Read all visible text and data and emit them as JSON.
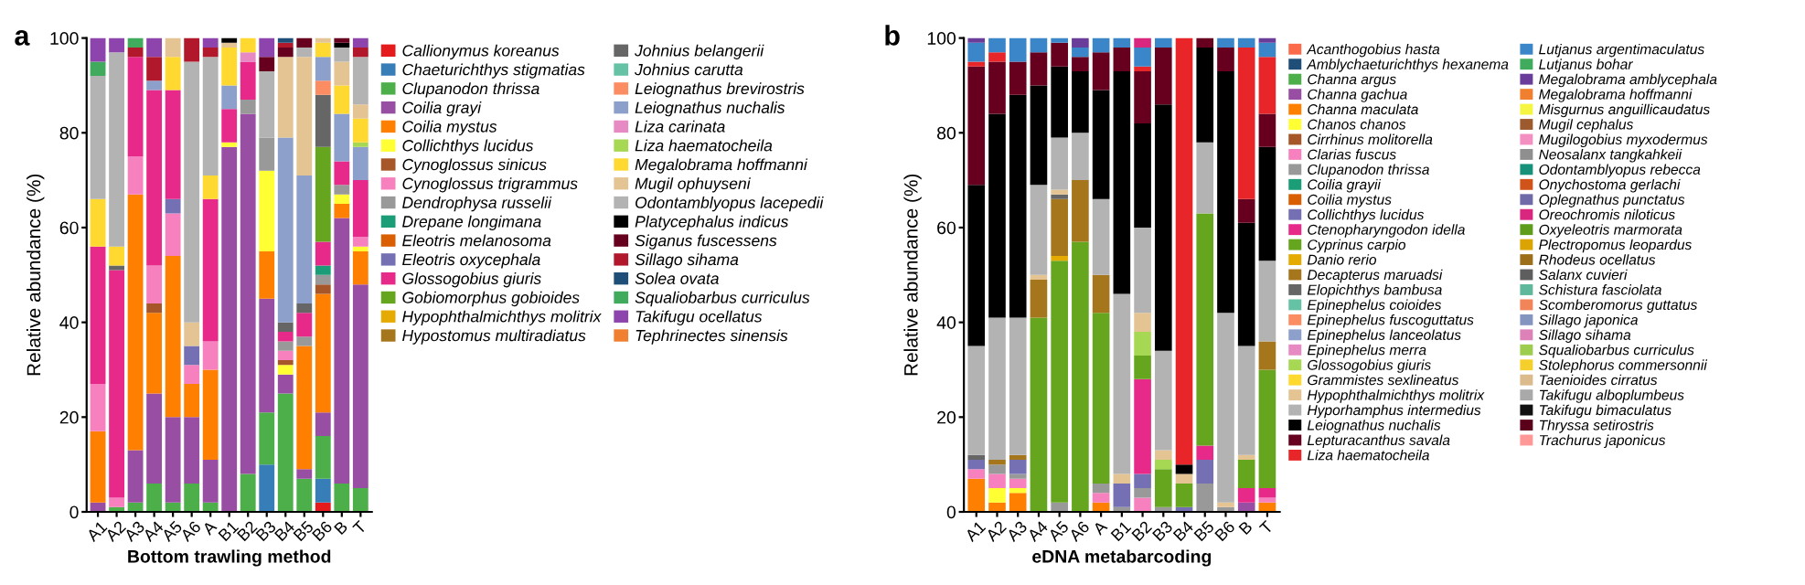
{
  "chart_data": [
    {
      "type": "bar",
      "stacked": true,
      "title": "a",
      "xlabel": "Bottom trawling method",
      "ylabel": "Relative abundance (%)",
      "legend": "right",
      "ylim": [
        0,
        100
      ],
      "yticks": [
        0,
        20,
        40,
        60,
        80,
        100
      ],
      "categories": [
        "A1",
        "A2",
        "A3",
        "A4",
        "A5",
        "A6",
        "A",
        "B1",
        "B2",
        "B3",
        "B4",
        "B5",
        "B6",
        "B",
        "T"
      ],
      "series": [
        {
          "name": "Callionymus koreanus",
          "color": "#e41a1c",
          "values": [
            0,
            0,
            0,
            0,
            0,
            0,
            0,
            0,
            0,
            0,
            0,
            0,
            2,
            0,
            0
          ]
        },
        {
          "name": "Chaeturichthys stigmatias",
          "color": "#377eb8",
          "values": [
            0,
            0,
            0,
            0,
            0,
            0,
            0,
            0,
            0,
            10,
            0,
            0,
            5,
            0,
            0
          ]
        },
        {
          "name": "Clupanodon thrissa",
          "color": "#4daf4a",
          "values": [
            0,
            1,
            2,
            6,
            2,
            6,
            2,
            0,
            8,
            11,
            25,
            7,
            9,
            6,
            5
          ]
        },
        {
          "name": "Coilia grayi",
          "color": "#984ea3",
          "values": [
            2,
            0,
            11,
            19,
            18,
            14,
            9,
            77,
            76,
            24,
            4,
            2,
            5,
            56,
            43
          ]
        },
        {
          "name": "Coilia mystus",
          "color": "#ff7f00",
          "values": [
            15,
            0,
            54,
            17,
            34,
            7,
            19,
            0,
            0,
            10,
            0,
            26,
            25,
            3,
            7
          ]
        },
        {
          "name": "Collichthys lucidus",
          "color": "#ffff33",
          "values": [
            0,
            0,
            0,
            0,
            0,
            0,
            0,
            1,
            0,
            17,
            2,
            0,
            0,
            2,
            1
          ]
        },
        {
          "name": "Cynoglossus sinicus",
          "color": "#a65628",
          "values": [
            0,
            0,
            0,
            2,
            0,
            0,
            0,
            0,
            0,
            0,
            1,
            0,
            2,
            0,
            0
          ]
        },
        {
          "name": "Cynoglossus trigrammus",
          "color": "#f781bf",
          "values": [
            10,
            2,
            8,
            8,
            9,
            4,
            6,
            0,
            0,
            0,
            2,
            0,
            0,
            0,
            2
          ]
        },
        {
          "name": "Dendrophysa russelii",
          "color": "#999999",
          "values": [
            0,
            0,
            0,
            0,
            0,
            0,
            0,
            0,
            3,
            7,
            2,
            2,
            2,
            2,
            0
          ]
        },
        {
          "name": "Drepane longimana",
          "color": "#1b9e77",
          "values": [
            0,
            0,
            0,
            0,
            0,
            0,
            0,
            0,
            0,
            0,
            0,
            0,
            2,
            0,
            0
          ]
        },
        {
          "name": "Eleotris melanosoma",
          "color": "#d95f02",
          "values": [
            0,
            0,
            0,
            0,
            0,
            0,
            0,
            0,
            0,
            0,
            0,
            0,
            0,
            0,
            0
          ]
        },
        {
          "name": "Eleotris oxycephala",
          "color": "#7570b3",
          "values": [
            0,
            0,
            0,
            0,
            3,
            4,
            0,
            0,
            0,
            0,
            0,
            0,
            0,
            0,
            0
          ]
        },
        {
          "name": "Glossogobius giuris",
          "color": "#e7298a",
          "values": [
            29,
            48,
            21,
            37,
            23,
            0,
            30,
            7,
            8,
            0,
            2,
            5,
            5,
            5,
            12
          ]
        },
        {
          "name": "Gobiomorphus gobioides",
          "color": "#66a61e",
          "values": [
            0,
            0,
            0,
            0,
            0,
            0,
            0,
            0,
            0,
            0,
            0,
            0,
            20,
            0,
            0
          ]
        },
        {
          "name": "Hypophthalmichthys molitrix",
          "color": "#e6ab02",
          "values": [
            0,
            0,
            0,
            0,
            0,
            0,
            0,
            0,
            0,
            0,
            0,
            0,
            0,
            0,
            0
          ]
        },
        {
          "name": "Hypostomus multiradiatus",
          "color": "#a6761d",
          "values": [
            0,
            0,
            0,
            0,
            0,
            0,
            0,
            0,
            0,
            0,
            0,
            0,
            0,
            0,
            0
          ]
        },
        {
          "name": "Johnius belangerii",
          "color": "#666666",
          "values": [
            0,
            1,
            0,
            0,
            0,
            0,
            0,
            0,
            0,
            0,
            2,
            2,
            11,
            0,
            0
          ]
        },
        {
          "name": "Johnius carutta",
          "color": "#66c2a5",
          "values": [
            0,
            0,
            0,
            0,
            0,
            0,
            0,
            0,
            0,
            0,
            0,
            0,
            0,
            0,
            0
          ]
        },
        {
          "name": "Leiognathus brevirostris",
          "color": "#fc8d62",
          "values": [
            0,
            0,
            0,
            0,
            0,
            0,
            0,
            0,
            0,
            0,
            0,
            0,
            3,
            0,
            0
          ]
        },
        {
          "name": "Leiognathus nuchalis",
          "color": "#8da0cb",
          "values": [
            0,
            0,
            0,
            2,
            0,
            0,
            0,
            5,
            0,
            0,
            39,
            27,
            5,
            10,
            7
          ]
        },
        {
          "name": "Liza carinata",
          "color": "#e78ac3",
          "values": [
            0,
            0,
            0,
            0,
            0,
            0,
            0,
            0,
            2,
            0,
            0,
            0,
            0,
            0,
            0
          ]
        },
        {
          "name": "Liza haematocheila",
          "color": "#a6d854",
          "values": [
            0,
            0,
            0,
            0,
            0,
            0,
            0,
            0,
            0,
            0,
            0,
            0,
            0,
            0,
            1
          ]
        },
        {
          "name": "Megalobrama hoffmanni",
          "color": "#ffd92f",
          "values": [
            10,
            4,
            0,
            0,
            7,
            0,
            5,
            8,
            3,
            0,
            0,
            0,
            3,
            6,
            5
          ]
        },
        {
          "name": "Mugil ophuyseni",
          "color": "#e5c494",
          "values": [
            0,
            0,
            0,
            0,
            4,
            5,
            0,
            1,
            0,
            0,
            17,
            25,
            1,
            5,
            3
          ]
        },
        {
          "name": "Odontamblyopus lacepedii",
          "color": "#b3b3b3",
          "values": [
            26,
            41,
            0,
            0,
            0,
            55,
            25,
            0,
            0,
            14,
            0,
            2,
            0,
            3,
            10
          ]
        },
        {
          "name": "Platycephalus indicus",
          "color": "#000000",
          "values": [
            0,
            0,
            0,
            0,
            0,
            0,
            0,
            1,
            0,
            0,
            0,
            0,
            0,
            1,
            0
          ]
        },
        {
          "name": "Siganus fuscessens",
          "color": "#67001f",
          "values": [
            0,
            0,
            0,
            0,
            0,
            0,
            0,
            0,
            0,
            3,
            2,
            2,
            0,
            1,
            0
          ]
        },
        {
          "name": "Sillago sihama",
          "color": "#b2182b",
          "values": [
            0,
            0,
            2,
            5,
            0,
            5,
            2,
            0,
            0,
            0,
            1,
            0,
            0,
            0,
            2
          ]
        },
        {
          "name": "Solea ovata",
          "color": "#1f4e79",
          "values": [
            0,
            0,
            0,
            0,
            0,
            0,
            0,
            0,
            0,
            0,
            1,
            0,
            0,
            0,
            0
          ]
        },
        {
          "name": "Squaliobarbus curriculus",
          "color": "#41ab5d",
          "values": [
            3,
            0,
            2,
            0,
            0,
            0,
            0,
            0,
            0,
            0,
            0,
            0,
            0,
            0,
            0
          ]
        },
        {
          "name": "Takifugu ocellatus",
          "color": "#8e44ad",
          "values": [
            5,
            3,
            0,
            4,
            0,
            0,
            2,
            0,
            0,
            4,
            0,
            0,
            0,
            0,
            2
          ]
        },
        {
          "name": "Tephrinectes sinensis",
          "color": "#f08030",
          "values": [
            0,
            0,
            0,
            0,
            0,
            0,
            0,
            0,
            0,
            0,
            0,
            0,
            0,
            0,
            0
          ]
        }
      ]
    },
    {
      "type": "bar",
      "stacked": true,
      "title": "b",
      "xlabel": "eDNA metabarcoding",
      "ylabel": "Relative abundance (%)",
      "legend": "right",
      "ylim": [
        0,
        100
      ],
      "yticks": [
        0,
        20,
        40,
        60,
        80,
        100
      ],
      "categories": [
        "A1",
        "A2",
        "A3",
        "A4",
        "A5",
        "A6",
        "A",
        "B1",
        "B2",
        "B3",
        "B4",
        "B5",
        "B6",
        "B",
        "T"
      ],
      "series": [
        {
          "name": "Acanthogobius hasta",
          "color": "#fb6a4a",
          "values": [
            0,
            0,
            0,
            0,
            0,
            0,
            0,
            0,
            0,
            0,
            0,
            0,
            0,
            0,
            0
          ]
        },
        {
          "name": "Amblychaeturichthys hexanema",
          "color": "#1f4e79",
          "values": [
            0,
            0,
            0,
            0,
            0,
            0,
            0,
            0,
            0,
            0,
            0,
            0,
            0,
            0,
            0
          ]
        },
        {
          "name": "Channa argus",
          "color": "#4daf4a",
          "values": [
            0,
            0,
            0,
            0,
            0,
            0,
            0,
            0,
            0,
            0,
            0,
            0,
            0,
            0,
            0
          ]
        },
        {
          "name": "Channa gachua",
          "color": "#984ea3",
          "values": [
            0,
            0,
            0,
            0,
            0,
            0,
            0,
            0,
            0,
            0,
            0,
            0,
            0,
            2,
            0
          ]
        },
        {
          "name": "Channa maculata",
          "color": "#ff7f00",
          "values": [
            7,
            2,
            4,
            0,
            0,
            0,
            2,
            0,
            0,
            0,
            0,
            0,
            0,
            0,
            2
          ]
        },
        {
          "name": "Chanos chanos",
          "color": "#ffff33",
          "values": [
            0,
            3,
            1,
            0,
            0,
            0,
            0,
            0,
            0,
            0,
            0,
            0,
            0,
            0,
            0
          ]
        },
        {
          "name": "Cirrhinus molitorella",
          "color": "#a65628",
          "values": [
            0,
            0,
            0,
            0,
            0,
            0,
            0,
            0,
            0,
            0,
            0,
            0,
            0,
            0,
            0
          ]
        },
        {
          "name": "Clarias fuscus",
          "color": "#f781bf",
          "values": [
            2,
            3,
            2,
            0,
            0,
            0,
            2,
            0,
            3,
            0,
            0,
            0,
            0,
            0,
            1
          ]
        },
        {
          "name": "Clupanodon thrissa",
          "color": "#999999",
          "values": [
            0,
            2,
            1,
            0,
            2,
            0,
            2,
            1,
            2,
            1,
            0,
            6,
            1,
            0,
            0
          ]
        },
        {
          "name": "Coilia grayii",
          "color": "#1b9e77",
          "values": [
            0,
            0,
            0,
            0,
            0,
            0,
            0,
            0,
            0,
            0,
            0,
            0,
            0,
            0,
            0
          ]
        },
        {
          "name": "Coilia mystus",
          "color": "#d95f02",
          "values": [
            0,
            0,
            0,
            0,
            0,
            0,
            0,
            0,
            0,
            0,
            0,
            0,
            0,
            0,
            0
          ]
        },
        {
          "name": "Collichthys lucidus",
          "color": "#7570b3",
          "values": [
            2,
            0,
            3,
            0,
            0,
            0,
            0,
            5,
            3,
            0,
            1,
            5,
            0,
            0,
            0
          ]
        },
        {
          "name": "Ctenopharyngodon idella",
          "color": "#e7298a",
          "values": [
            0,
            0,
            0,
            0,
            0,
            0,
            0,
            0,
            20,
            0,
            0,
            3,
            0,
            3,
            2
          ]
        },
        {
          "name": "Cyprinus carpio",
          "color": "#66a61e",
          "values": [
            0,
            0,
            0,
            41,
            51,
            57,
            36,
            0,
            5,
            8,
            5,
            49,
            0,
            6,
            25
          ]
        },
        {
          "name": "Danio rerio",
          "color": "#e6ab02",
          "values": [
            0,
            0,
            0,
            0,
            1,
            0,
            0,
            0,
            0,
            0,
            0,
            0,
            0,
            0,
            0
          ]
        },
        {
          "name": "Decapterus maruadsi",
          "color": "#a6761d",
          "values": [
            0,
            1,
            1,
            8,
            12,
            13,
            8,
            0,
            0,
            0,
            0,
            0,
            0,
            0,
            6
          ]
        },
        {
          "name": "Elopichthys bambusa",
          "color": "#666666",
          "values": [
            1,
            0,
            0,
            0,
            1,
            0,
            0,
            0,
            0,
            0,
            0,
            0,
            0,
            0,
            0
          ]
        },
        {
          "name": "Epinephelus coioides",
          "color": "#66c2a5",
          "values": [
            0,
            0,
            0,
            0,
            0,
            0,
            0,
            0,
            0,
            0,
            0,
            0,
            0,
            0,
            0
          ]
        },
        {
          "name": "Epinephelus fuscoguttatus",
          "color": "#fc8d62",
          "values": [
            0,
            0,
            0,
            0,
            0,
            0,
            0,
            0,
            0,
            0,
            0,
            0,
            0,
            0,
            0
          ]
        },
        {
          "name": "Epinephelus lanceolatus",
          "color": "#8da0cb",
          "values": [
            0,
            0,
            0,
            0,
            0,
            0,
            0,
            0,
            0,
            0,
            0,
            0,
            0,
            0,
            0
          ]
        },
        {
          "name": "Epinephelus merra",
          "color": "#e78ac3",
          "values": [
            0,
            0,
            0,
            0,
            0,
            0,
            0,
            0,
            0,
            0,
            0,
            0,
            0,
            0,
            0
          ]
        },
        {
          "name": "Glossogobius giuris",
          "color": "#a6d854",
          "values": [
            0,
            0,
            0,
            0,
            0,
            0,
            0,
            0,
            5,
            2,
            0,
            0,
            0,
            0,
            0
          ]
        },
        {
          "name": "Grammistes sexlineatus",
          "color": "#ffd92f",
          "values": [
            0,
            0,
            0,
            0,
            0,
            0,
            0,
            0,
            0,
            0,
            0,
            0,
            0,
            0,
            0
          ]
        },
        {
          "name": "Hypophthalmichthys molitrix",
          "color": "#e5c494",
          "values": [
            0,
            0,
            0,
            1,
            1,
            0,
            0,
            2,
            4,
            2,
            2,
            0,
            1,
            1,
            0
          ]
        },
        {
          "name": "Hyporhamphus intermedius",
          "color": "#b3b3b3",
          "values": [
            23,
            30,
            29,
            19,
            11,
            10,
            16,
            38,
            18,
            21,
            0,
            15,
            40,
            23,
            17
          ]
        },
        {
          "name": "Leiognathus nuchalis",
          "color": "#000000",
          "values": [
            34,
            43,
            47,
            21,
            15,
            13,
            23,
            47,
            22,
            52,
            2,
            20,
            51,
            26,
            24
          ]
        },
        {
          "name": "Lepturacanthus savala",
          "color": "#67001f",
          "values": [
            25,
            11,
            7,
            7,
            5,
            3,
            8,
            5,
            11,
            12,
            0,
            2,
            5,
            5,
            7
          ]
        },
        {
          "name": "Liza haematocheila",
          "color": "#e8262a",
          "values": [
            1,
            2,
            0,
            0,
            0,
            0,
            0,
            0,
            1,
            0,
            90,
            0,
            0,
            32,
            12
          ]
        },
        {
          "name": "Lutjanus argentimaculatus",
          "color": "#3a86c8",
          "values": [
            4,
            3,
            5,
            3,
            1,
            2,
            3,
            2,
            4,
            2,
            0,
            0,
            2,
            2,
            3
          ]
        },
        {
          "name": "Lutjanus bohar",
          "color": "#41ab5d",
          "values": [
            0,
            0,
            0,
            0,
            0,
            0,
            0,
            0,
            0,
            0,
            0,
            0,
            0,
            0,
            0
          ]
        },
        {
          "name": "Megalobrama amblycephala",
          "color": "#6a3d9a",
          "values": [
            1,
            0,
            0,
            0,
            0,
            2,
            0,
            0,
            0,
            0,
            0,
            0,
            0,
            0,
            1
          ]
        },
        {
          "name": "Megalobrama hoffmanni",
          "color": "#f08030",
          "values": [
            0,
            0,
            0,
            0,
            0,
            0,
            0,
            0,
            0,
            0,
            0,
            0,
            0,
            0,
            0
          ]
        },
        {
          "name": "Misgurnus anguillicaudatus",
          "color": "#f5f542",
          "values": [
            0,
            0,
            0,
            0,
            0,
            0,
            0,
            0,
            0,
            0,
            0,
            0,
            0,
            0,
            0
          ]
        },
        {
          "name": "Mugil cephalus",
          "color": "#9c5a2e",
          "values": [
            0,
            0,
            0,
            0,
            0,
            0,
            0,
            0,
            0,
            0,
            0,
            0,
            0,
            0,
            0
          ]
        },
        {
          "name": "Mugilogobius myxodermus",
          "color": "#f48fc2",
          "values": [
            0,
            0,
            0,
            0,
            0,
            0,
            0,
            0,
            0,
            0,
            0,
            0,
            0,
            0,
            0
          ]
        },
        {
          "name": "Neosalanx tangkahkeii",
          "color": "#8f8f8f",
          "values": [
            0,
            0,
            0,
            0,
            0,
            0,
            0,
            0,
            0,
            0,
            0,
            0,
            0,
            0,
            0
          ]
        },
        {
          "name": "Odontamblyopus rebecca",
          "color": "#17917a",
          "values": [
            0,
            0,
            0,
            0,
            0,
            0,
            0,
            0,
            0,
            0,
            0,
            0,
            0,
            0,
            0
          ]
        },
        {
          "name": "Onychostoma gerlachi",
          "color": "#d0541a",
          "values": [
            0,
            0,
            0,
            0,
            0,
            0,
            0,
            0,
            0,
            0,
            0,
            0,
            0,
            0,
            0
          ]
        },
        {
          "name": "Oplegnathus punctatus",
          "color": "#6f6aa8",
          "values": [
            0,
            0,
            0,
            0,
            0,
            0,
            0,
            0,
            0,
            0,
            0,
            0,
            0,
            0,
            0
          ]
        },
        {
          "name": "Oreochromis niloticus",
          "color": "#d9267f",
          "values": [
            0,
            0,
            0,
            0,
            0,
            0,
            0,
            0,
            2,
            0,
            0,
            0,
            0,
            0,
            0
          ]
        },
        {
          "name": "Oxyeleotris marmorata",
          "color": "#5e9c1c",
          "values": [
            0,
            0,
            0,
            0,
            0,
            0,
            0,
            0,
            0,
            0,
            0,
            0,
            0,
            0,
            0
          ]
        },
        {
          "name": "Plectropomus leopardus",
          "color": "#dba402",
          "values": [
            0,
            0,
            0,
            0,
            0,
            0,
            0,
            0,
            0,
            0,
            0,
            0,
            0,
            0,
            0
          ]
        },
        {
          "name": "Rhodeus ocellatus",
          "color": "#9c6f1b",
          "values": [
            0,
            0,
            0,
            0,
            0,
            0,
            0,
            0,
            0,
            0,
            0,
            0,
            0,
            0,
            0
          ]
        },
        {
          "name": "Salanx cuvieri",
          "color": "#5e5e5e",
          "values": [
            0,
            0,
            0,
            0,
            0,
            0,
            0,
            0,
            0,
            0,
            0,
            0,
            0,
            0,
            0
          ]
        },
        {
          "name": "Schistura fasciolata",
          "color": "#5fb89b",
          "values": [
            0,
            0,
            0,
            0,
            0,
            0,
            0,
            0,
            0,
            0,
            0,
            0,
            0,
            0,
            0
          ]
        },
        {
          "name": "Scomberomorus guttatus",
          "color": "#f2845a",
          "values": [
            0,
            0,
            0,
            0,
            0,
            0,
            0,
            0,
            0,
            0,
            0,
            0,
            0,
            0,
            0
          ]
        },
        {
          "name": "Sillago japonica",
          "color": "#8496c0",
          "values": [
            0,
            0,
            0,
            0,
            0,
            0,
            0,
            0,
            0,
            0,
            0,
            0,
            0,
            0,
            0
          ]
        },
        {
          "name": "Sillago sihama",
          "color": "#dd82b9",
          "values": [
            0,
            0,
            0,
            0,
            0,
            0,
            0,
            0,
            0,
            0,
            0,
            0,
            0,
            0,
            0
          ]
        },
        {
          "name": "Squaliobarbus curriculus",
          "color": "#9ccd4f",
          "values": [
            0,
            0,
            0,
            0,
            0,
            0,
            0,
            0,
            0,
            0,
            0,
            0,
            0,
            0,
            0
          ]
        },
        {
          "name": "Stolephorus commersonnii",
          "color": "#f5cf2b",
          "values": [
            0,
            0,
            0,
            0,
            0,
            0,
            0,
            0,
            0,
            0,
            0,
            0,
            0,
            0,
            0
          ]
        },
        {
          "name": "Taenioides cirratus",
          "color": "#dbba8c",
          "values": [
            0,
            0,
            0,
            0,
            0,
            0,
            0,
            0,
            0,
            0,
            0,
            0,
            0,
            0,
            0
          ]
        },
        {
          "name": "Takifugu alboplumbeus",
          "color": "#a9a9a9",
          "values": [
            0,
            0,
            0,
            0,
            0,
            0,
            0,
            0,
            0,
            0,
            0,
            0,
            0,
            0,
            0
          ]
        },
        {
          "name": "Takifugu bimaculatus",
          "color": "#111111",
          "values": [
            0,
            0,
            0,
            0,
            0,
            0,
            0,
            0,
            0,
            0,
            0,
            0,
            0,
            0,
            0
          ]
        },
        {
          "name": "Thryssa setirostris",
          "color": "#5a001b",
          "values": [
            0,
            0,
            0,
            0,
            0,
            0,
            0,
            0,
            0,
            0,
            0,
            0,
            0,
            0,
            0
          ]
        },
        {
          "name": "Trachurus japonicus",
          "color": "#ff9896",
          "values": [
            0,
            0,
            0,
            0,
            0,
            0,
            0,
            0,
            0,
            0,
            0,
            0,
            0,
            0,
            0
          ]
        }
      ]
    }
  ]
}
